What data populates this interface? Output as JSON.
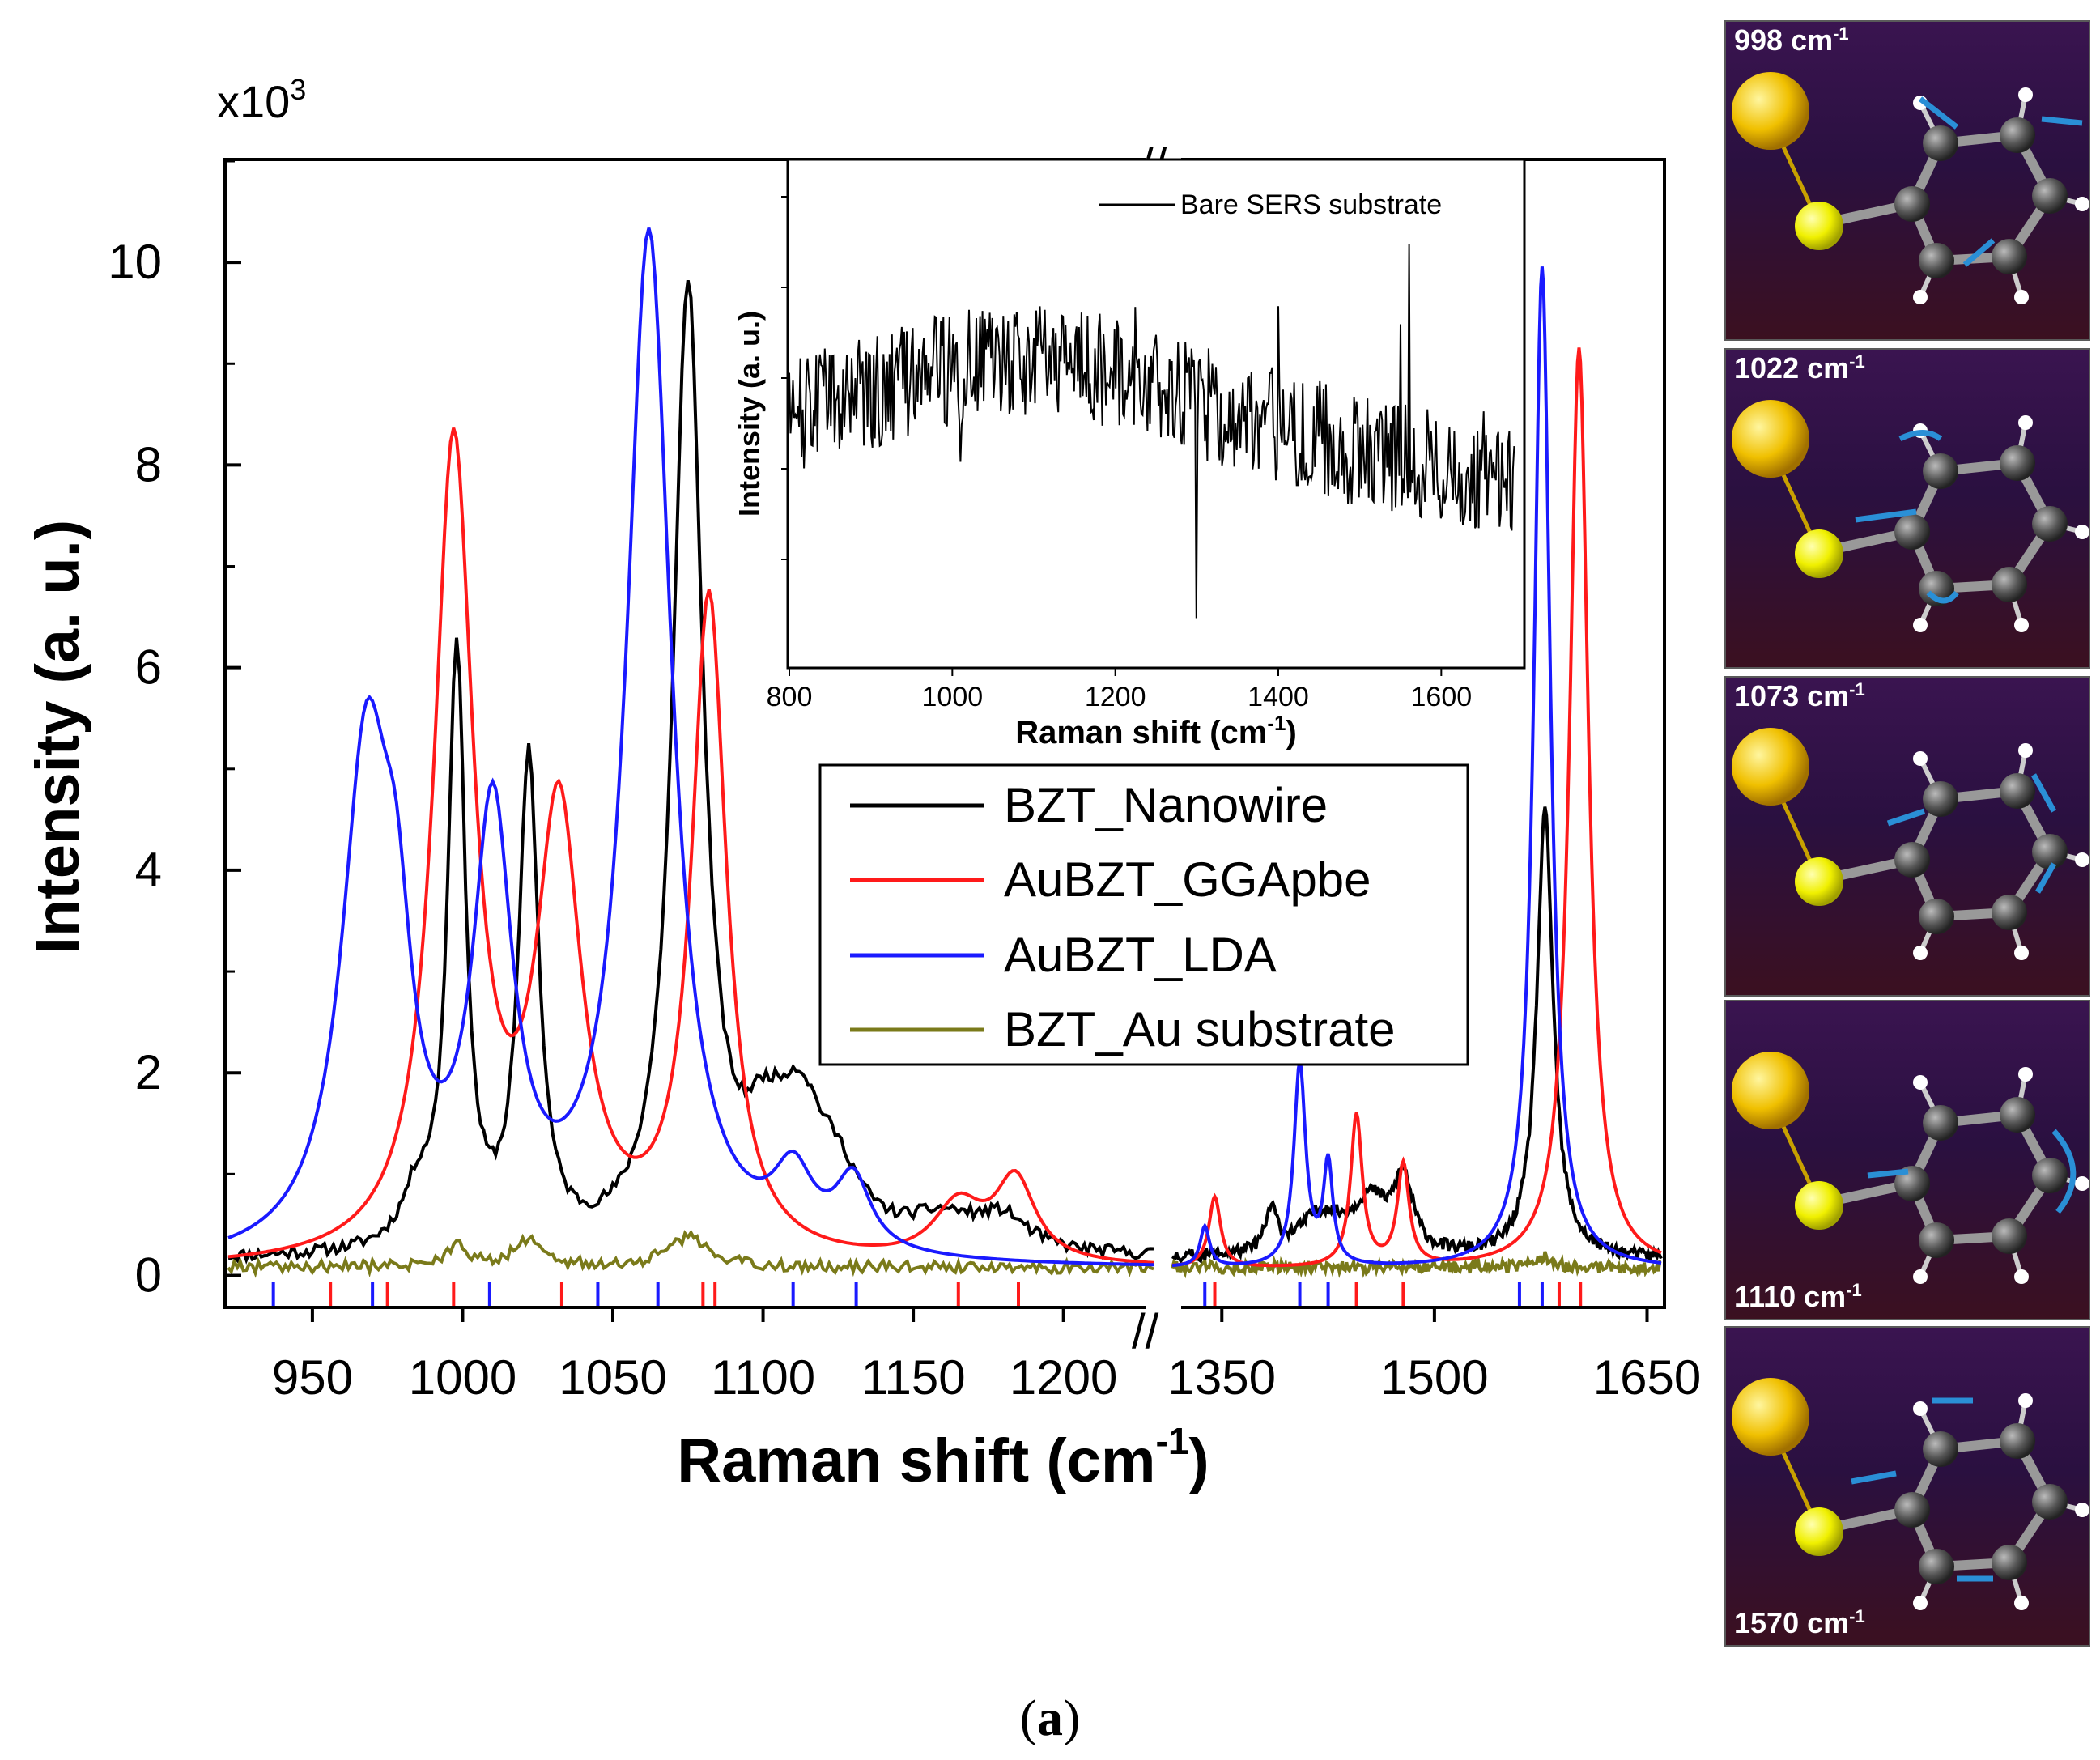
{
  "caption": {
    "open": "(",
    "letter": "a",
    "close": ")"
  },
  "chart_data": [
    {
      "type": "line",
      "title": "",
      "xlabel_main": "Raman shift (cm",
      "xlabel_sup": "-1",
      "xlabel_close": ")",
      "ylabel": "Intensity (a. u.)",
      "y_multiplier_base": "x10",
      "y_multiplier_exp": "3",
      "ylim": [
        -0.3,
        11
      ],
      "yticks": [
        0,
        2,
        4,
        6,
        8,
        10
      ],
      "x_segments": [
        {
          "range": [
            922,
            1230
          ],
          "ticks": [
            950,
            1000,
            1050,
            1100,
            1150,
            1200
          ]
        },
        {
          "range": [
            1315,
            1660
          ],
          "ticks": [
            1350,
            1500,
            1650
          ]
        }
      ],
      "axis_break": "//",
      "legend": {
        "position": "center-right",
        "entries": [
          "BZT_Nanowire",
          "AuBZT_GGApbe",
          "AuBZT_LDA",
          "BZT_Au substrate"
        ]
      },
      "colors": {
        "BZT_Nanowire": "#000000",
        "AuBZT_GGApbe": "#ff1a1a",
        "AuBZT_LDA": "#1a1aff",
        "BZT_Au substrate": "#7a7a1a"
      },
      "series": [
        {
          "name": "BZT_Nanowire",
          "baseline": 0.15,
          "peaks": [
            [
              985,
              0.5,
              6
            ],
            [
              998,
              5.9,
              3.5
            ],
            [
              1022,
              4.8,
              4
            ],
            [
              1075,
              9.5,
              6
            ],
            [
              1100,
              0.7,
              8
            ],
            [
              1112,
              1.2,
              10
            ],
            [
              1125,
              0.5,
              10
            ],
            [
              1160,
              0.3,
              15
            ],
            [
              1180,
              0.3,
              10
            ],
            [
              1385,
              0.4,
              5
            ],
            [
              1420,
              0.4,
              20
            ],
            [
              1455,
              0.5,
              15
            ],
            [
              1478,
              0.7,
              8
            ],
            [
              1578,
              4.4,
              7
            ]
          ]
        },
        {
          "name": "AuBZT_GGApbe",
          "baseline": 0.05,
          "peaks": [
            [
              997,
              8.0,
              8
            ],
            [
              1032,
              4.3,
              9
            ],
            [
              1082,
              6.5,
              7
            ],
            [
              1165,
              0.55,
              10
            ],
            [
              1184,
              0.8,
              8
            ],
            [
              1345,
              0.7,
              5
            ],
            [
              1445,
              1.5,
              5
            ],
            [
              1478,
              1.0,
              5
            ],
            [
              1602,
              9.1,
              8
            ]
          ]
        },
        {
          "name": "AuBZT_LDA",
          "baseline": 0.05,
          "peaks": [
            [
              968,
              4.9,
              10
            ],
            [
              978,
              1.8,
              6
            ],
            [
              1010,
              4.2,
              8
            ],
            [
              1062,
              10.1,
              9
            ],
            [
              1110,
              0.7,
              8
            ],
            [
              1130,
              0.7,
              7
            ],
            [
              1338,
              0.4,
              4
            ],
            [
              1405,
              2.0,
              5
            ],
            [
              1425,
              1.0,
              4
            ],
            [
              1576,
              9.9,
              7
            ]
          ]
        },
        {
          "name": "BZT_Au substrate",
          "baseline": 0.08,
          "peaks": [
            [
              998,
              0.2,
              5
            ],
            [
              1022,
              0.25,
              6
            ],
            [
              1075,
              0.3,
              8
            ],
            [
              1578,
              0.1,
              6
            ]
          ]
        }
      ],
      "tick_marks": {
        "LDA": [
          937,
          970,
          1009,
          1045,
          1065,
          1110,
          1131,
          1338,
          1405,
          1425,
          1560,
          1576
        ],
        "GGApbe": [
          956,
          975,
          997,
          1033,
          1080,
          1084,
          1165,
          1185,
          1345,
          1445,
          1478,
          1588,
          1603
        ]
      }
    },
    {
      "type": "line",
      "title": "",
      "xlabel_main": "Raman shift (cm",
      "xlabel_sup": "-1",
      "xlabel_close": ")",
      "ylabel": "Intensity (a. u.)",
      "xlim": [
        800,
        1700
      ],
      "xticks": [
        800,
        1000,
        1200,
        1400,
        1600
      ],
      "legend": {
        "position": "top-right",
        "entries": [
          "Bare SERS substrate"
        ]
      },
      "series": [
        {
          "name": "Bare SERS substrate",
          "trend": [
            [
              800,
              0.52
            ],
            [
              1000,
              0.62
            ],
            [
              1150,
              0.64
            ],
            [
              1300,
              0.55
            ],
            [
              1500,
              0.45
            ],
            [
              1700,
              0.38
            ]
          ],
          "noise": 0.12,
          "spikes": [
            [
              1300,
              -0.45
            ],
            [
              1560,
              0.45
            ],
            [
              1400,
              0.25
            ],
            [
              1550,
              0.28
            ]
          ]
        }
      ]
    }
  ],
  "mode_panels": [
    {
      "label_value": "998",
      "label_unit": "cm",
      "label_exp": "-1",
      "label_pos": "top"
    },
    {
      "label_value": "1022",
      "label_unit": "cm",
      "label_exp": "-1",
      "label_pos": "top"
    },
    {
      "label_value": "1073",
      "label_unit": "cm",
      "label_exp": "-1",
      "label_pos": "top"
    },
    {
      "label_value": "1110",
      "label_unit": "cm",
      "label_exp": "-1",
      "label_pos": "bottom"
    },
    {
      "label_value": "1570",
      "label_unit": "cm",
      "label_exp": "-1",
      "label_pos": "bottom"
    }
  ]
}
